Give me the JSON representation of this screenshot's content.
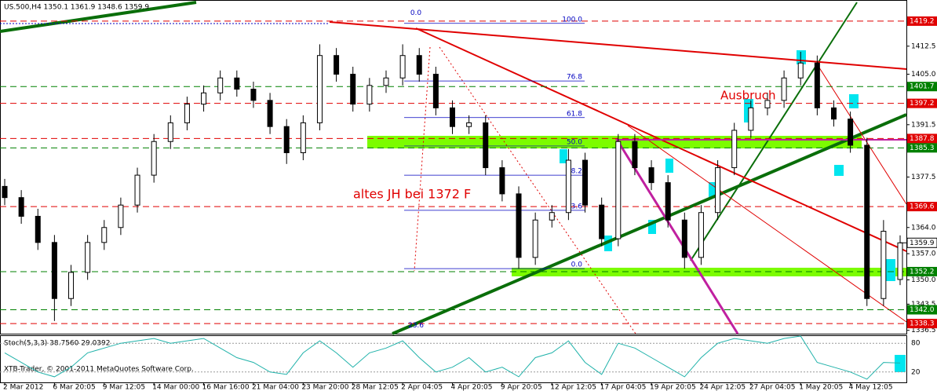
{
  "chart_data": {
    "type": "candlestick",
    "title": "US.500,H4  1350.1 1361.9 1348.6 1359.9",
    "footer": "XTB-Trader, © 2001-2011 MetaQuotes Software Corp.",
    "categories": [
      "2 Mar 2012",
      null,
      null,
      "6 Mar 20:05",
      null,
      null,
      "9 Mar 12:05",
      null,
      null,
      "14 Mar 00:00",
      null,
      null,
      "16 Mar 16:00",
      null,
      null,
      "21 Mar 04:00",
      null,
      null,
      "23 Mar 20:00",
      null,
      null,
      "28 Mar 12:05",
      null,
      null,
      "2 Apr 04:05",
      null,
      null,
      "4 Apr 20:05",
      null,
      null,
      "9 Apr 20:05",
      null,
      null,
      "12 Apr 12:05",
      null,
      null,
      "17 Apr 04:05",
      null,
      null,
      "19 Apr 20:05",
      null,
      null,
      "24 Apr 12:05",
      null,
      null,
      "27 Apr 04:05",
      null,
      null,
      "1 May 20:05",
      null,
      null,
      "4 May 12:05",
      null,
      null,
      null
    ],
    "open": [
      1375,
      1372,
      1367,
      1360,
      1345,
      1352,
      1360,
      1364,
      1370,
      1378,
      1387,
      1392,
      1397,
      1400,
      1404,
      1401,
      1398,
      1391,
      1384,
      1392,
      1410,
      1405,
      1397,
      1402,
      1404,
      1410,
      1405,
      1396,
      1391,
      1392,
      1380,
      1373,
      1356,
      1366,
      1368,
      1382,
      1370,
      1361,
      1387,
      1380,
      1376,
      1366,
      1356,
      1368,
      1380,
      1390,
      1396,
      1398,
      1404,
      1408,
      1396,
      1393,
      1386,
      1345,
      1350.1
    ],
    "high": [
      1377,
      1374,
      1369,
      1362,
      1354,
      1362,
      1366,
      1372,
      1380,
      1389,
      1394,
      1399,
      1402,
      1406,
      1406,
      1403,
      1400,
      1393,
      1394,
      1413,
      1412,
      1407,
      1404,
      1406,
      1413,
      1412,
      1407,
      1398,
      1394,
      1394,
      1382,
      1375,
      1368,
      1370,
      1385,
      1384,
      1372,
      1389,
      1389,
      1382,
      1378,
      1368,
      1370,
      1382,
      1392,
      1398,
      1400,
      1406,
      1411,
      1410,
      1398,
      1395,
      1388,
      1366,
      1361.9
    ],
    "low": [
      1370,
      1365,
      1358,
      1339,
      1343,
      1350,
      1358,
      1362,
      1368,
      1376,
      1385,
      1390,
      1395,
      1398,
      1399,
      1396,
      1389,
      1381,
      1382,
      1390,
      1403,
      1395,
      1395,
      1400,
      1402,
      1403,
      1394,
      1389,
      1389,
      1378,
      1371,
      1353,
      1354,
      1364,
      1366,
      1368,
      1359,
      1359,
      1378,
      1374,
      1364,
      1353,
      1354,
      1366,
      1378,
      1388,
      1394,
      1396,
      1402,
      1394,
      1391,
      1384,
      1343,
      1343,
      1348.6
    ],
    "close": [
      1372,
      1367,
      1360,
      1345,
      1352,
      1360,
      1364,
      1370,
      1378,
      1387,
      1392,
      1397,
      1400,
      1404,
      1401,
      1398,
      1391,
      1384,
      1392,
      1410,
      1405,
      1397,
      1402,
      1404,
      1410,
      1405,
      1396,
      1391,
      1392,
      1380,
      1373,
      1356,
      1366,
      1368,
      1382,
      1370,
      1361,
      1387,
      1380,
      1376,
      1366,
      1356,
      1368,
      1380,
      1390,
      1396,
      1398,
      1404,
      1408,
      1396,
      1393,
      1386,
      1345,
      1363,
      1359.9
    ],
    "ylim": [
      1335.6,
      1421.7
    ],
    "yticks": [
      {
        "value": 1412.5,
        "label": "1412.5"
      },
      {
        "value": 1405,
        "label": "1405.0"
      },
      {
        "value": 1391.5,
        "label": "1391.5"
      },
      {
        "value": 1377.5,
        "label": "1377.5"
      },
      {
        "value": 1364,
        "label": "1364.0"
      },
      {
        "value": 1357,
        "label": "1357.0"
      },
      {
        "value": 1350,
        "label": "1350.0"
      },
      {
        "value": 1343.5,
        "label": "1343.5"
      },
      {
        "value": 1336.5,
        "label": "1336.5"
      }
    ],
    "levels": [
      {
        "value": 1419.2,
        "label": "1419.2",
        "color": "#e00000"
      },
      {
        "value": 1401.7,
        "label": "1401.7",
        "color": "#008000"
      },
      {
        "value": 1397.2,
        "label": "1397.2",
        "color": "#e00000"
      },
      {
        "value": 1387.8,
        "label": "1387.8",
        "color": "#e00000"
      },
      {
        "value": 1385.3,
        "label": "1385.3",
        "color": "#008000"
      },
      {
        "value": 1369.6,
        "label": "1369.6",
        "color": "#e00000"
      },
      {
        "value": 1352.2,
        "label": "1352.2",
        "color": "#008000"
      },
      {
        "value": 1342,
        "label": "1342.0",
        "color": "#008000"
      },
      {
        "value": 1338.3,
        "label": "1338.3",
        "color": "#e00000"
      }
    ],
    "current_price": {
      "value": 1359.9,
      "label": "1359.9"
    },
    "fib_levels": [
      {
        "value": 1418.6,
        "label": "100.0"
      },
      {
        "value": 1403.2,
        "label": "76.8"
      },
      {
        "value": 1393.4,
        "label": "61.8"
      },
      {
        "value": 1385.8,
        "label": "50.0"
      },
      {
        "value": 1378,
        "label": "38.2"
      },
      {
        "value": 1368.6,
        "label": "23.6"
      },
      {
        "value": 1353,
        "label": "0.0"
      }
    ],
    "fib_levels_2": [
      {
        "value": 1420.3,
        "label": "0.0"
      },
      {
        "value": 1336.8,
        "label": "23.6"
      }
    ],
    "annotations": [
      "altes JH bei 1372 F",
      "Ausbruch"
    ],
    "stoch": {
      "title": "Stoch(5,3,3) 38.7560 29.0392",
      "ylim": [
        0,
        100
      ],
      "yticks": [
        80,
        20
      ],
      "color": "#20b2aa",
      "values": [
        60,
        40,
        20,
        10,
        30,
        60,
        70,
        80,
        85,
        90,
        80,
        85,
        90,
        70,
        50,
        40,
        20,
        15,
        60,
        85,
        60,
        30,
        60,
        70,
        85,
        50,
        20,
        30,
        50,
        20,
        30,
        10,
        50,
        60,
        85,
        40,
        15,
        80,
        70,
        50,
        30,
        10,
        50,
        80,
        90,
        85,
        80,
        90,
        95,
        40,
        30,
        20,
        5,
        40,
        38.756
      ]
    }
  }
}
